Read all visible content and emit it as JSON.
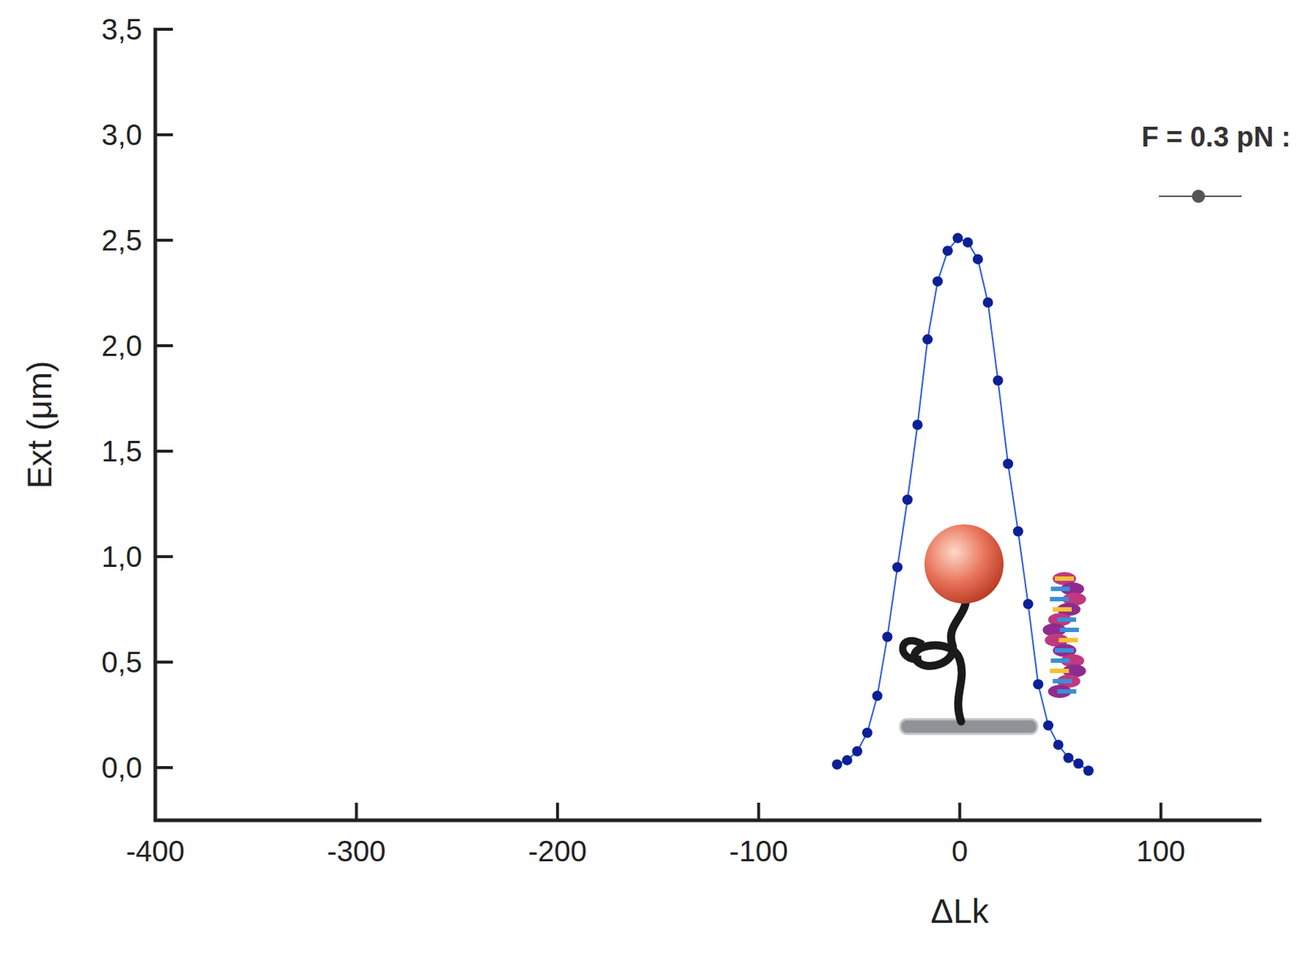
{
  "chart_data": {
    "type": "line",
    "x_label": "ΔLk",
    "y_label": "Ext (μm)",
    "xlim": [
      -400,
      150
    ],
    "ylim": [
      -0.25,
      3.5
    ],
    "xticks": [
      -400,
      -300,
      -200,
      -100,
      0,
      100
    ],
    "yticks": [
      {
        "value": 0,
        "label": "0,0"
      },
      {
        "value": 0.5,
        "label": "0,5"
      },
      {
        "value": 1,
        "label": "1,0"
      },
      {
        "value": 1.5,
        "label": "1,5"
      },
      {
        "value": 2,
        "label": "2,0"
      },
      {
        "value": 2.5,
        "label": "2,5"
      },
      {
        "value": 3,
        "label": "3,0"
      },
      {
        "value": 3.5,
        "label": "3,5"
      }
    ],
    "grid": false,
    "legend": "top-right",
    "series": [
      {
        "name": "F = 0.3 pN :",
        "color": "#0d1f96",
        "marker": "circle",
        "line_style": "solid",
        "x": [
          -61,
          -56,
          -51,
          -46,
          -41,
          -36,
          -31,
          -26,
          -21,
          -16,
          -11,
          -6,
          -1,
          4,
          9,
          14,
          19,
          24,
          29,
          34,
          39,
          44,
          49,
          54,
          59,
          64
        ],
        "values": [
          0.015,
          0.035,
          0.077,
          0.165,
          0.34,
          0.62,
          0.95,
          1.27,
          1.625,
          2.03,
          2.305,
          2.45,
          2.51,
          2.49,
          2.41,
          2.205,
          1.835,
          1.44,
          1.12,
          0.775,
          0.395,
          0.2,
          0.108,
          0.046,
          0.019,
          -0.015
        ]
      }
    ]
  }
}
